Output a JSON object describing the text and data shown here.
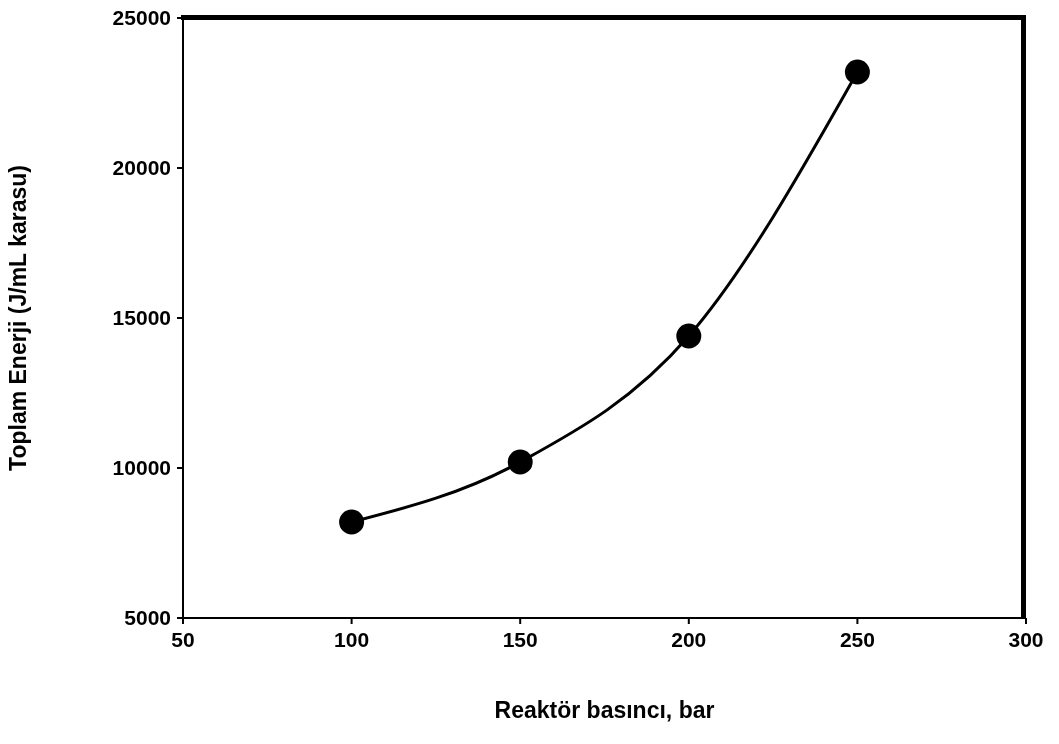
{
  "chart_data": {
    "type": "line",
    "xlabel": "Reaktör basıncı, bar",
    "ylabel": "Toplam Enerji (J/mL karasu)",
    "x": [
      100,
      150,
      200,
      250
    ],
    "series": [
      {
        "color": "#000000",
        "values": [
          8200,
          10200,
          14400,
          23200
        ]
      }
    ],
    "xlim": [
      50,
      300
    ],
    "xticks": [
      50,
      100,
      150,
      200,
      250,
      300
    ],
    "ylim": [
      5000,
      25000
    ],
    "yticks": [
      5000,
      10000,
      15000,
      20000,
      25000
    ],
    "grid": false,
    "marker": "circle",
    "line_style": "solid"
  }
}
